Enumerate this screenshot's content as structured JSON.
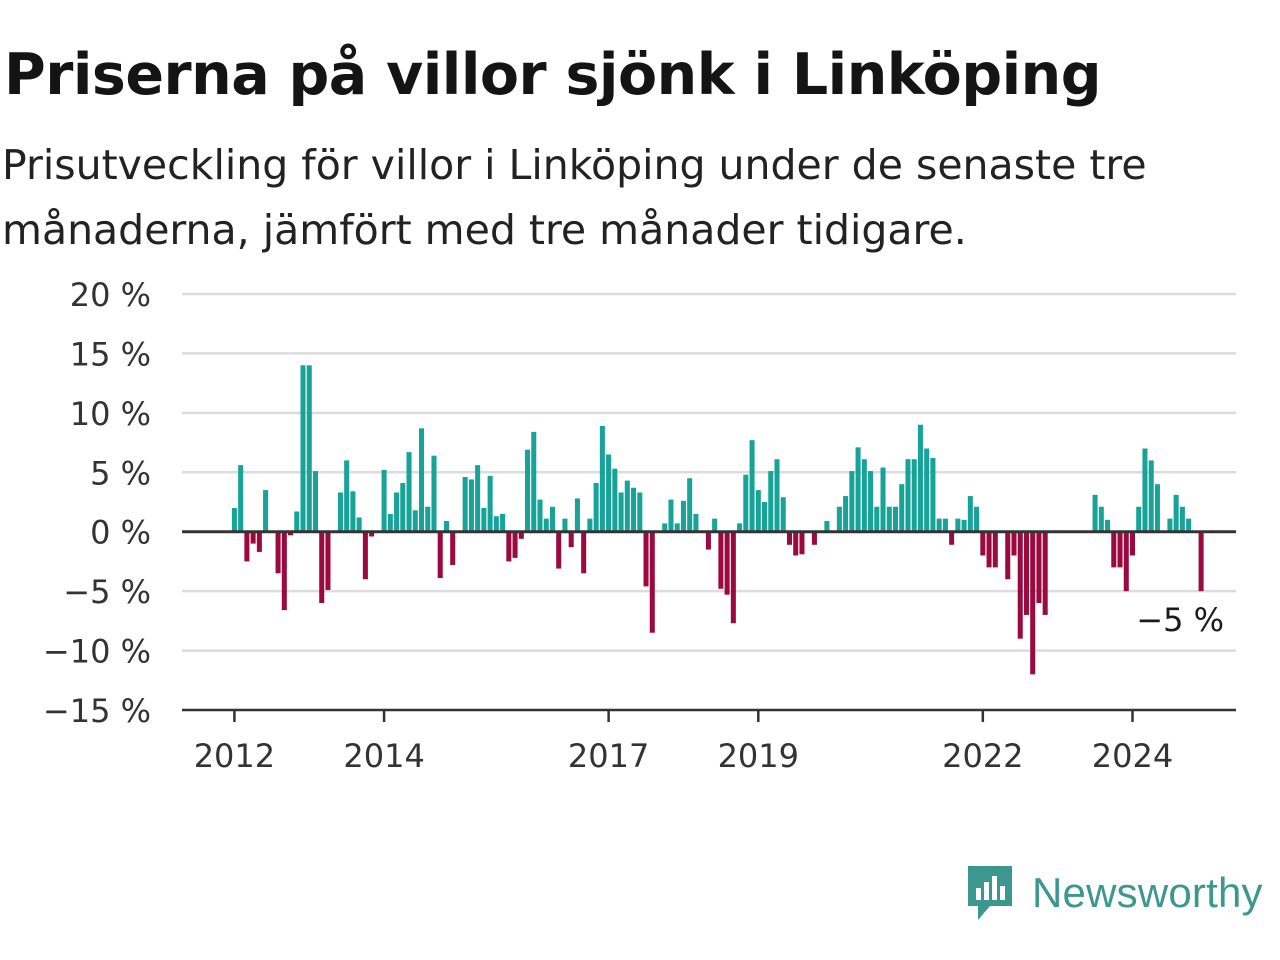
{
  "header": {
    "title": "Priserna på villor sjönk i Linköping",
    "subtitle": "Prisutveckling för villor i Linköping under de senaste tre månaderna, jämfört med tre månader tidigare."
  },
  "brand": {
    "name": "Newsworthy"
  },
  "colors": {
    "positive": "#17a398",
    "negative": "#9b0a3e",
    "axis": "#333333",
    "grid": "#dcdcdc",
    "brand": "#3c978e"
  },
  "chart_data": {
    "type": "bar",
    "y_unit": "%",
    "ylim": [
      -15,
      20
    ],
    "yticks": [
      20,
      15,
      10,
      5,
      0,
      -5,
      -10,
      -15
    ],
    "ytick_labels": [
      "20 %",
      "15 %",
      "10 %",
      "5 %",
      "0 %",
      "−5 %",
      "−10 %",
      "−15 %"
    ],
    "xticks": [
      {
        "label": "2012",
        "at": "2012-01"
      },
      {
        "label": "2014",
        "at": "2014-01"
      },
      {
        "label": "2017",
        "at": "2017-01"
      },
      {
        "label": "2019",
        "at": "2019-01"
      },
      {
        "label": "2022",
        "at": "2022-01"
      },
      {
        "label": "2024",
        "at": "2024-01"
      }
    ],
    "x_start": "2011-05",
    "x_end": "2025-06",
    "values": [
      null,
      null,
      null,
      null,
      null,
      null,
      null,
      null,
      2,
      5.6,
      -2.5,
      -1,
      -1.7,
      3.5,
      0,
      -3.5,
      -6.6,
      -0.3,
      1.7,
      14,
      14,
      5.1,
      -6,
      -4.9,
      0,
      3.3,
      6,
      3.4,
      1.2,
      -4,
      -0.4,
      0,
      5.2,
      1.5,
      3.3,
      4.1,
      6.7,
      1.8,
      8.7,
      2.1,
      6.4,
      -3.9,
      0.9,
      -2.8,
      0,
      4.6,
      4.4,
      5.6,
      2,
      4.7,
      1.3,
      1.5,
      -2.5,
      -2.2,
      -0.6,
      6.9,
      8.4,
      2.7,
      1.1,
      2.1,
      -3.1,
      1.1,
      -1.3,
      2.8,
      -3.5,
      1.1,
      4.1,
      8.9,
      6.5,
      5.3,
      3.3,
      4.3,
      3.7,
      3.3,
      -4.6,
      -8.5,
      0,
      0.7,
      2.7,
      0.7,
      2.6,
      4.5,
      1.5,
      0,
      -1.5,
      1.1,
      -4.8,
      -5.3,
      -7.7,
      0.7,
      4.8,
      7.7,
      3.5,
      2.5,
      5.1,
      6.1,
      2.9,
      -1.1,
      -2,
      -1.9,
      0,
      -1.1,
      0,
      0.9,
      0,
      2.1,
      3,
      5.1,
      7.1,
      6.1,
      5.1,
      2.1,
      5.4,
      2.1,
      2.1,
      4,
      6.1,
      6.1,
      9,
      7,
      6.2,
      1.1,
      1.1,
      -1.1,
      1.1,
      1,
      3,
      2.1,
      -2,
      -3,
      -3,
      0,
      -4,
      -2,
      -9,
      -7,
      -12,
      -6,
      -7,
      0,
      0,
      0,
      0,
      0,
      0,
      0,
      3.1,
      2.1,
      1,
      -3,
      -3,
      -5,
      -2,
      2.1,
      7,
      6,
      4,
      0,
      1.1,
      3.1,
      2.1,
      1.1,
      0,
      -5
    ],
    "last_value_label": "−5 %"
  }
}
